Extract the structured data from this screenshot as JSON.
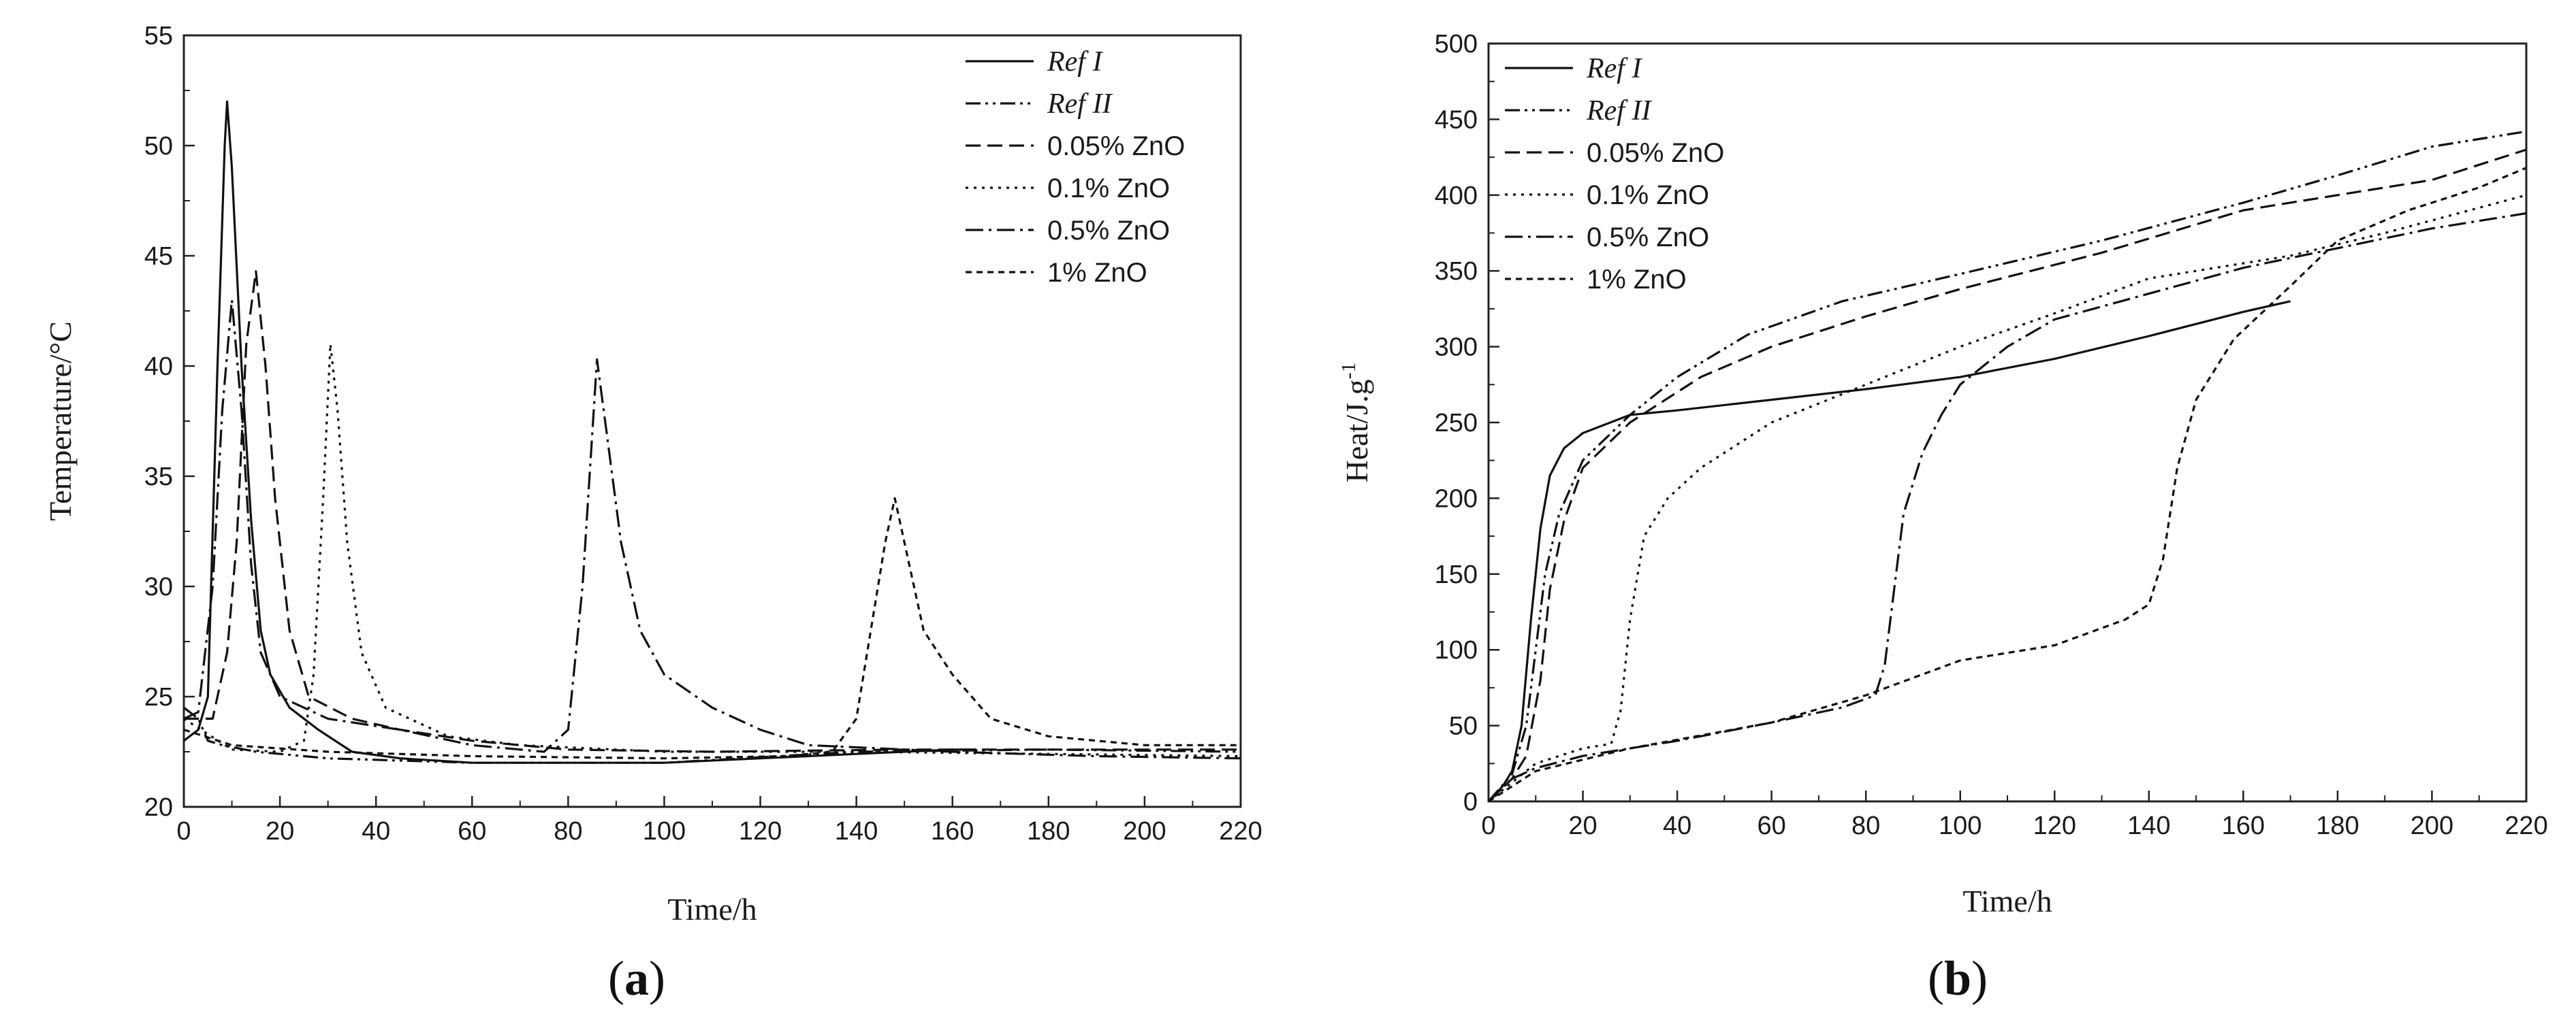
{
  "chart_data": [
    {
      "panel_label": "a",
      "type": "line",
      "xlabel": "Time/h",
      "ylabel": "Temperature/°C",
      "xlim": [
        0,
        220
      ],
      "ylim": [
        20,
        55
      ],
      "xticks": [
        "0",
        "20",
        "40",
        "60",
        "80",
        "100",
        "120",
        "140",
        "160",
        "180",
        "200",
        "220"
      ],
      "yticks": [
        "20",
        "25",
        "30",
        "35",
        "40",
        "45",
        "50",
        "55"
      ],
      "legend_position": "top-right",
      "series": [
        {
          "name": "Ref I",
          "dash": "solid",
          "italic": true,
          "points": [
            [
              0,
              23
            ],
            [
              3,
              23.5
            ],
            [
              5,
              25
            ],
            [
              7,
              40
            ],
            [
              8.5,
              50
            ],
            [
              9,
              52
            ],
            [
              10,
              49
            ],
            [
              12,
              40
            ],
            [
              14,
              33
            ],
            [
              16,
              28
            ],
            [
              18,
              26
            ],
            [
              22,
              24.5
            ],
            [
              28,
              23.5
            ],
            [
              35,
              22.5
            ],
            [
              45,
              22.2
            ],
            [
              60,
              22
            ],
            [
              80,
              22
            ],
            [
              100,
              22
            ],
            [
              120,
              22.2
            ],
            [
              140,
              22.4
            ],
            [
              160,
              22.6
            ],
            [
              165,
              22.6
            ]
          ]
        },
        {
          "name": "Ref II",
          "dash": "dashdotdot",
          "italic": true,
          "points": [
            [
              0,
              24.5
            ],
            [
              3,
              24
            ],
            [
              5,
              23
            ],
            [
              8,
              22.8
            ],
            [
              15,
              22.5
            ],
            [
              30,
              22.2
            ],
            [
              60,
              22
            ],
            [
              100,
              22
            ],
            [
              140,
              22.5
            ],
            [
              180,
              22.6
            ],
            [
              220,
              22.5
            ]
          ]
        },
        {
          "name": "0.05% ZnO",
          "dash": "dashed",
          "italic": false,
          "points": [
            [
              0,
              24
            ],
            [
              6,
              24
            ],
            [
              9,
              27
            ],
            [
              11,
              32
            ],
            [
              13,
              41
            ],
            [
              15,
              44.3
            ],
            [
              17,
              40
            ],
            [
              19,
              34
            ],
            [
              22,
              28
            ],
            [
              26,
              25
            ],
            [
              35,
              24
            ],
            [
              45,
              23.5
            ],
            [
              60,
              23
            ],
            [
              80,
              22.6
            ],
            [
              110,
              22.5
            ],
            [
              150,
              22.6
            ],
            [
              190,
              22.6
            ],
            [
              220,
              22.6
            ]
          ]
        },
        {
          "name": "0.1% ZnO",
          "dash": "dotted",
          "italic": false,
          "points": [
            [
              0,
              24
            ],
            [
              10,
              22.6
            ],
            [
              20,
              22.5
            ],
            [
              25,
              23
            ],
            [
              27,
              26
            ],
            [
              29,
              34
            ],
            [
              30.5,
              41
            ],
            [
              32,
              38
            ],
            [
              34,
              32
            ],
            [
              37,
              27
            ],
            [
              42,
              24.5
            ],
            [
              55,
              23.2
            ],
            [
              70,
              22.8
            ],
            [
              100,
              22.5
            ],
            [
              140,
              22.5
            ],
            [
              180,
              22.4
            ],
            [
              220,
              22.3
            ]
          ]
        },
        {
          "name": "0.5% ZnO",
          "dash": "dashdot",
          "italic": false,
          "points": [
            [
              0,
              24
            ],
            [
              3,
              24.3
            ],
            [
              6,
              30
            ],
            [
              8,
              38
            ],
            [
              10,
              43
            ],
            [
              12,
              38
            ],
            [
              14,
              31
            ],
            [
              16,
              27
            ],
            [
              20,
              25
            ],
            [
              30,
              24
            ],
            [
              45,
              23.5
            ],
            [
              60,
              22.8
            ],
            [
              75,
              22.5
            ],
            [
              80,
              23.5
            ],
            [
              83,
              30
            ],
            [
              86,
              40.3
            ],
            [
              88,
              37
            ],
            [
              91,
              32
            ],
            [
              95,
              28
            ],
            [
              100,
              26
            ],
            [
              110,
              24.5
            ],
            [
              120,
              23.5
            ],
            [
              130,
              22.8
            ],
            [
              160,
              22.5
            ],
            [
              190,
              22.3
            ],
            [
              220,
              22.2
            ]
          ]
        },
        {
          "name": "1% ZnO",
          "dash": "shortdash",
          "italic": false,
          "points": [
            [
              0,
              23.5
            ],
            [
              10,
              22.8
            ],
            [
              30,
              22.5
            ],
            [
              60,
              22.3
            ],
            [
              100,
              22.2
            ],
            [
              125,
              22.3
            ],
            [
              135,
              22.5
            ],
            [
              140,
              24
            ],
            [
              143,
              28
            ],
            [
              146,
              32
            ],
            [
              148,
              34
            ],
            [
              151,
              31
            ],
            [
              154,
              28
            ],
            [
              160,
              26
            ],
            [
              168,
              24
            ],
            [
              180,
              23.2
            ],
            [
              200,
              22.8
            ],
            [
              220,
              22.8
            ]
          ]
        }
      ]
    },
    {
      "panel_label": "b",
      "type": "line",
      "xlabel": "Time/h",
      "ylabel": "Heat/J.g",
      "ylabel_superscript": "-1",
      "xlim": [
        0,
        220
      ],
      "ylim": [
        0,
        500
      ],
      "xticks": [
        "0",
        "20",
        "40",
        "60",
        "80",
        "100",
        "120",
        "140",
        "160",
        "180",
        "200",
        "220"
      ],
      "yticks": [
        "0",
        "50",
        "100",
        "150",
        "200",
        "250",
        "300",
        "350",
        "400",
        "450",
        "500"
      ],
      "legend_position": "top-left",
      "series": [
        {
          "name": "Ref I",
          "dash": "solid",
          "italic": true,
          "points": [
            [
              0,
              0
            ],
            [
              3,
              10
            ],
            [
              5,
              20
            ],
            [
              7,
              50
            ],
            [
              9,
              120
            ],
            [
              11,
              180
            ],
            [
              13,
              215
            ],
            [
              16,
              233
            ],
            [
              20,
              243
            ],
            [
              30,
              255
            ],
            [
              40,
              258
            ],
            [
              60,
              265
            ],
            [
              80,
              272
            ],
            [
              100,
              280
            ],
            [
              120,
              292
            ],
            [
              140,
              307
            ],
            [
              160,
              323
            ],
            [
              170,
              330
            ]
          ]
        },
        {
          "name": "Ref II",
          "dash": "dashdotdot",
          "italic": true,
          "points": [
            [
              0,
              0
            ],
            [
              5,
              18
            ],
            [
              8,
              50
            ],
            [
              10,
              100
            ],
            [
              12,
              150
            ],
            [
              15,
              190
            ],
            [
              20,
              225
            ],
            [
              30,
              255
            ],
            [
              40,
              280
            ],
            [
              55,
              308
            ],
            [
              75,
              330
            ],
            [
              100,
              348
            ],
            [
              130,
              370
            ],
            [
              160,
              395
            ],
            [
              180,
              413
            ],
            [
              200,
              432
            ],
            [
              220,
              442
            ]
          ]
        },
        {
          "name": "0.05% ZnO",
          "dash": "dashed",
          "italic": false,
          "points": [
            [
              0,
              0
            ],
            [
              5,
              15
            ],
            [
              8,
              30
            ],
            [
              11,
              80
            ],
            [
              13,
              140
            ],
            [
              16,
              185
            ],
            [
              20,
              220
            ],
            [
              30,
              250
            ],
            [
              45,
              280
            ],
            [
              60,
              300
            ],
            [
              80,
              320
            ],
            [
              100,
              338
            ],
            [
              130,
              362
            ],
            [
              160,
              390
            ],
            [
              180,
              400
            ],
            [
              200,
              410
            ],
            [
              220,
              430
            ]
          ]
        },
        {
          "name": "0.1% ZnO",
          "dash": "dotted",
          "italic": false,
          "points": [
            [
              0,
              0
            ],
            [
              10,
              25
            ],
            [
              20,
              35
            ],
            [
              26,
              38
            ],
            [
              28,
              60
            ],
            [
              30,
              120
            ],
            [
              33,
              175
            ],
            [
              38,
              200
            ],
            [
              45,
              220
            ],
            [
              60,
              250
            ],
            [
              80,
              275
            ],
            [
              100,
              300
            ],
            [
              120,
              322
            ],
            [
              140,
              345
            ],
            [
              150,
              350
            ],
            [
              170,
              360
            ],
            [
              190,
              375
            ],
            [
              220,
              400
            ]
          ]
        },
        {
          "name": "0.5% ZnO",
          "dash": "dashdot",
          "italic": false,
          "points": [
            [
              0,
              0
            ],
            [
              5,
              15
            ],
            [
              10,
              22
            ],
            [
              20,
              30
            ],
            [
              40,
              40
            ],
            [
              60,
              52
            ],
            [
              75,
              62
            ],
            [
              82,
              70
            ],
            [
              84,
              90
            ],
            [
              86,
              140
            ],
            [
              88,
              190
            ],
            [
              92,
              230
            ],
            [
              96,
              255
            ],
            [
              100,
              275
            ],
            [
              110,
              300
            ],
            [
              120,
              318
            ],
            [
              140,
              335
            ],
            [
              160,
              352
            ],
            [
              180,
              365
            ],
            [
              200,
              378
            ],
            [
              220,
              388
            ]
          ]
        },
        {
          "name": "1% ZnO",
          "dash": "shortdash",
          "italic": false,
          "points": [
            [
              0,
              0
            ],
            [
              10,
              20
            ],
            [
              30,
              35
            ],
            [
              60,
              52
            ],
            [
              80,
              70
            ],
            [
              100,
              93
            ],
            [
              120,
              103
            ],
            [
              135,
              120
            ],
            [
              140,
              130
            ],
            [
              143,
              160
            ],
            [
              146,
              220
            ],
            [
              150,
              265
            ],
            [
              158,
              305
            ],
            [
              170,
              340
            ],
            [
              180,
              370
            ],
            [
              195,
              390
            ],
            [
              210,
              405
            ],
            [
              220,
              418
            ]
          ]
        }
      ]
    }
  ]
}
